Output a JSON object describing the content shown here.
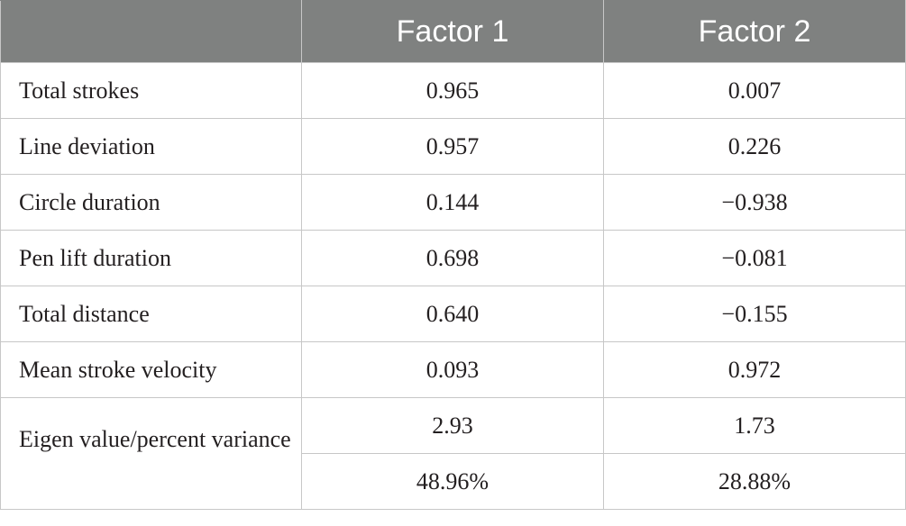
{
  "table": {
    "headers": [
      "",
      "Factor 1",
      "Factor 2"
    ],
    "rows": [
      {
        "label": "Total strokes",
        "factor1": "0.965",
        "factor2": "0.007"
      },
      {
        "label": "Line deviation",
        "factor1": "0.957",
        "factor2": "0.226"
      },
      {
        "label": "Circle duration",
        "factor1": "0.144",
        "factor2": "−0.938"
      },
      {
        "label": "Pen lift duration",
        "factor1": "0.698",
        "factor2": "−0.081"
      },
      {
        "label": "Total distance",
        "factor1": "0.640",
        "factor2": "−0.155"
      },
      {
        "label": "Mean stroke velocity",
        "factor1": "0.093",
        "factor2": "0.972"
      }
    ],
    "eigen": {
      "label": "Eigen value/percent variance",
      "eigenvalue": {
        "factor1": "2.93",
        "factor2": "1.73"
      },
      "percent": {
        "factor1": "48.96%",
        "factor2": "28.88%"
      }
    }
  }
}
